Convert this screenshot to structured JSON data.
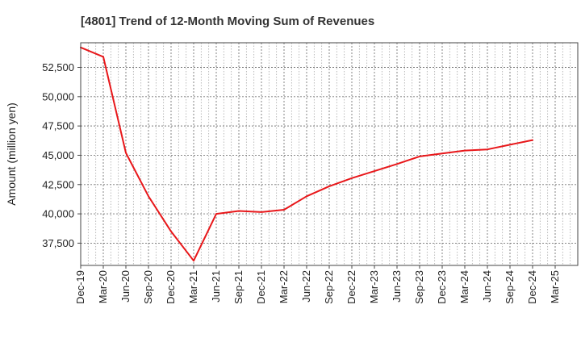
{
  "chart_data": {
    "type": "line",
    "title": "[4801]  Trend of 12-Month Moving Sum of Revenues",
    "xlabel": "",
    "ylabel": "Amount (million yen)",
    "grid": true,
    "legend": "none",
    "line_color": "#e8171a",
    "ylim": [
      35600,
      54600
    ],
    "y_ticks": [
      37500,
      40000,
      42500,
      45000,
      47500,
      50000,
      52500
    ],
    "y_tick_labels": [
      "37,500",
      "40,000",
      "42,500",
      "45,000",
      "47,500",
      "50,000",
      "52,500"
    ],
    "x_tick_labels": [
      "Dec-19",
      "Mar-20",
      "Jun-20",
      "Sep-20",
      "Dec-20",
      "Mar-21",
      "Jun-21",
      "Sep-21",
      "Dec-21",
      "Mar-22",
      "Jun-22",
      "Sep-22",
      "Dec-22",
      "Mar-23",
      "Jun-23",
      "Sep-23",
      "Dec-23",
      "Mar-24",
      "Jun-24",
      "Sep-24",
      "Dec-24",
      "Mar-25"
    ],
    "series": [
      {
        "x": [
          "Dec-19",
          "Mar-20",
          "Jun-20",
          "Sep-20",
          "Dec-20",
          "Mar-21",
          "Jun-21",
          "Sep-21",
          "Dec-21",
          "Mar-22",
          "Jun-22",
          "Sep-22",
          "Dec-22",
          "Mar-23",
          "Jun-23",
          "Sep-23",
          "Dec-23",
          "Mar-24",
          "Jun-24",
          "Sep-24",
          "Dec-24"
        ],
        "values": [
          54200,
          53400,
          45200,
          41500,
          38500,
          36000,
          40000,
          40250,
          40150,
          40350,
          41500,
          42350,
          43050,
          43650,
          44250,
          44900,
          45150,
          45400,
          45500,
          45900,
          46300
        ]
      }
    ]
  }
}
